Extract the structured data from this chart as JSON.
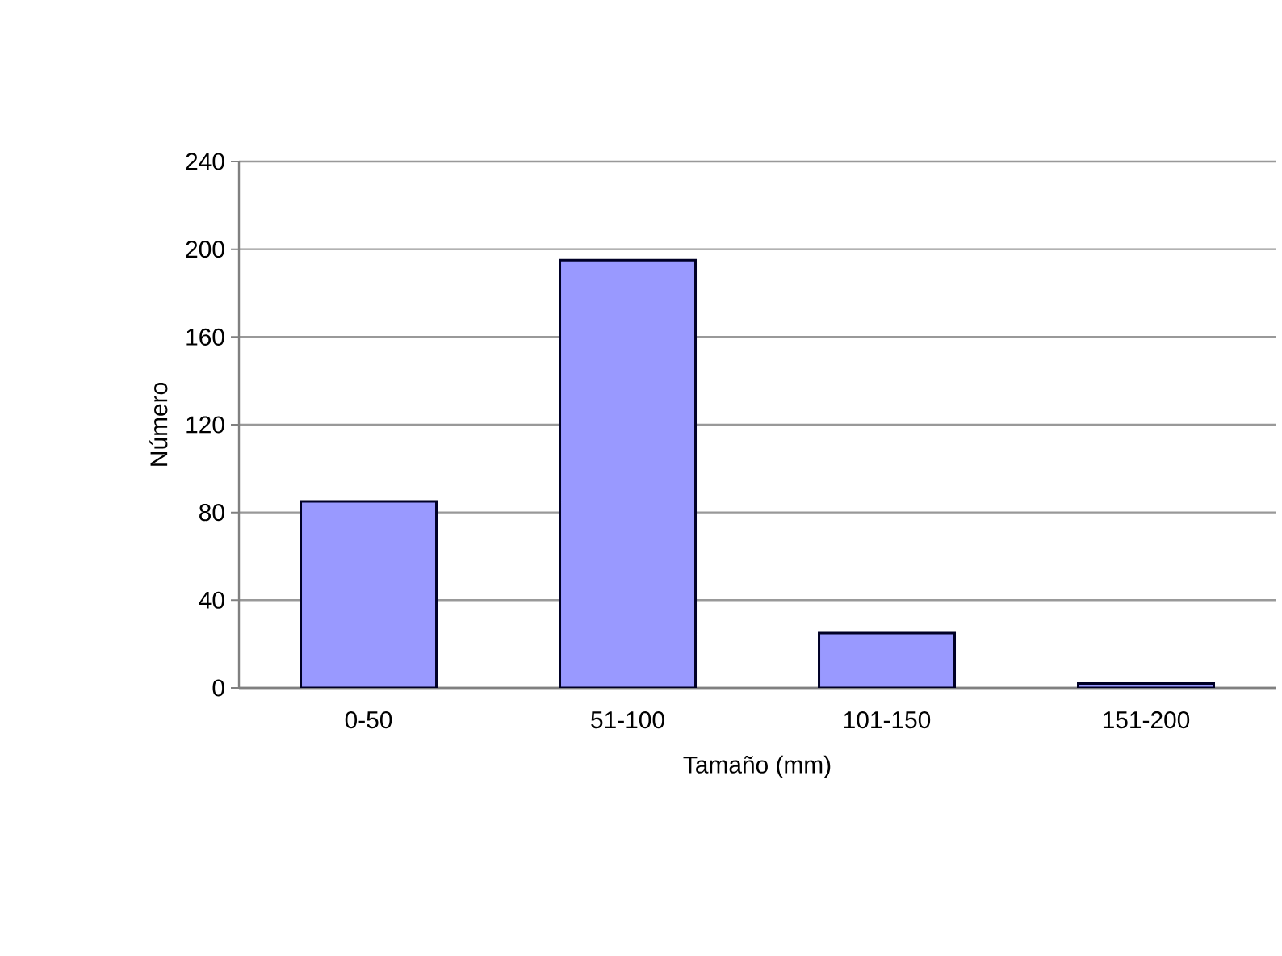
{
  "chart_data": {
    "type": "bar",
    "xlabel": "Tamaño (mm)",
    "ylabel": "Número",
    "categories": [
      "0-50",
      "51-100",
      "101-150",
      "151-200"
    ],
    "values": [
      85,
      195,
      25,
      2
    ],
    "color": "#9999ff",
    "ylim": [
      0,
      240
    ],
    "yticks": [
      0,
      40,
      80,
      120,
      160,
      200,
      240
    ],
    "grid": "y"
  }
}
